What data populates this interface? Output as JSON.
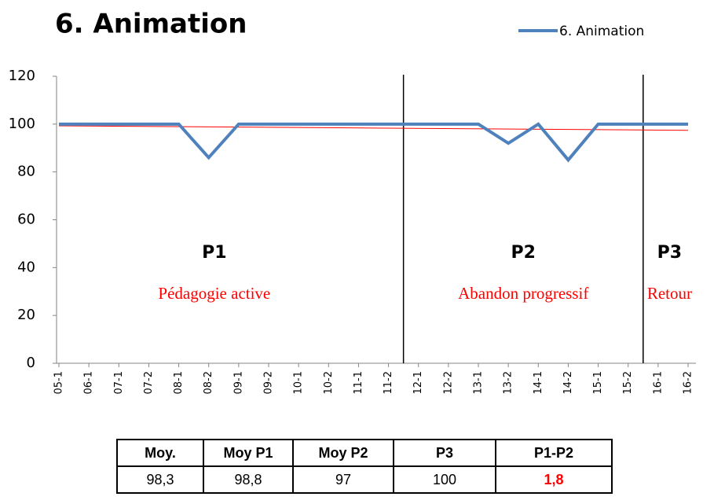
{
  "chart_data": {
    "type": "line",
    "title": "6. Animation",
    "categories": [
      "05-1",
      "06-1",
      "07-1",
      "07-2",
      "08-1",
      "08-2",
      "09-1",
      "09-2",
      "10-1",
      "10-2",
      "11-1",
      "11-2",
      "12-1",
      "12-2",
      "13-1",
      "13-2",
      "14-1",
      "14-2",
      "15-1",
      "15-2",
      "16-1",
      "16-2"
    ],
    "series": [
      {
        "name": "6. Animation",
        "color": "#4f81bd",
        "values": [
          100,
          100,
          100,
          100,
          100,
          86,
          100,
          100,
          100,
          100,
          100,
          100,
          100,
          100,
          100,
          92,
          100,
          85,
          100,
          100,
          100,
          100
        ]
      }
    ],
    "trend": {
      "color": "#ff0000",
      "start": 99.3,
      "end": 97.4
    },
    "ylim": [
      0,
      120
    ],
    "yticks": [
      0,
      20,
      40,
      60,
      80,
      100,
      120
    ],
    "grid": false,
    "legend": "top-right",
    "periods": [
      {
        "label": "P1",
        "text": "Pédagogie active",
        "from": "05-1",
        "to": "11-2"
      },
      {
        "label": "P2",
        "text": "Abandon progressif",
        "from": "12-1",
        "to": "15-2"
      },
      {
        "label": "P3",
        "text": "Retour",
        "from": "16-1",
        "to": "16-2"
      }
    ]
  },
  "table": {
    "headers": [
      "Moy.",
      "Moy P1",
      "Moy P2",
      "P3",
      "P1-P2"
    ],
    "rows": [
      [
        "98,3",
        "98,8",
        "97",
        "100",
        "1,8"
      ]
    ]
  }
}
